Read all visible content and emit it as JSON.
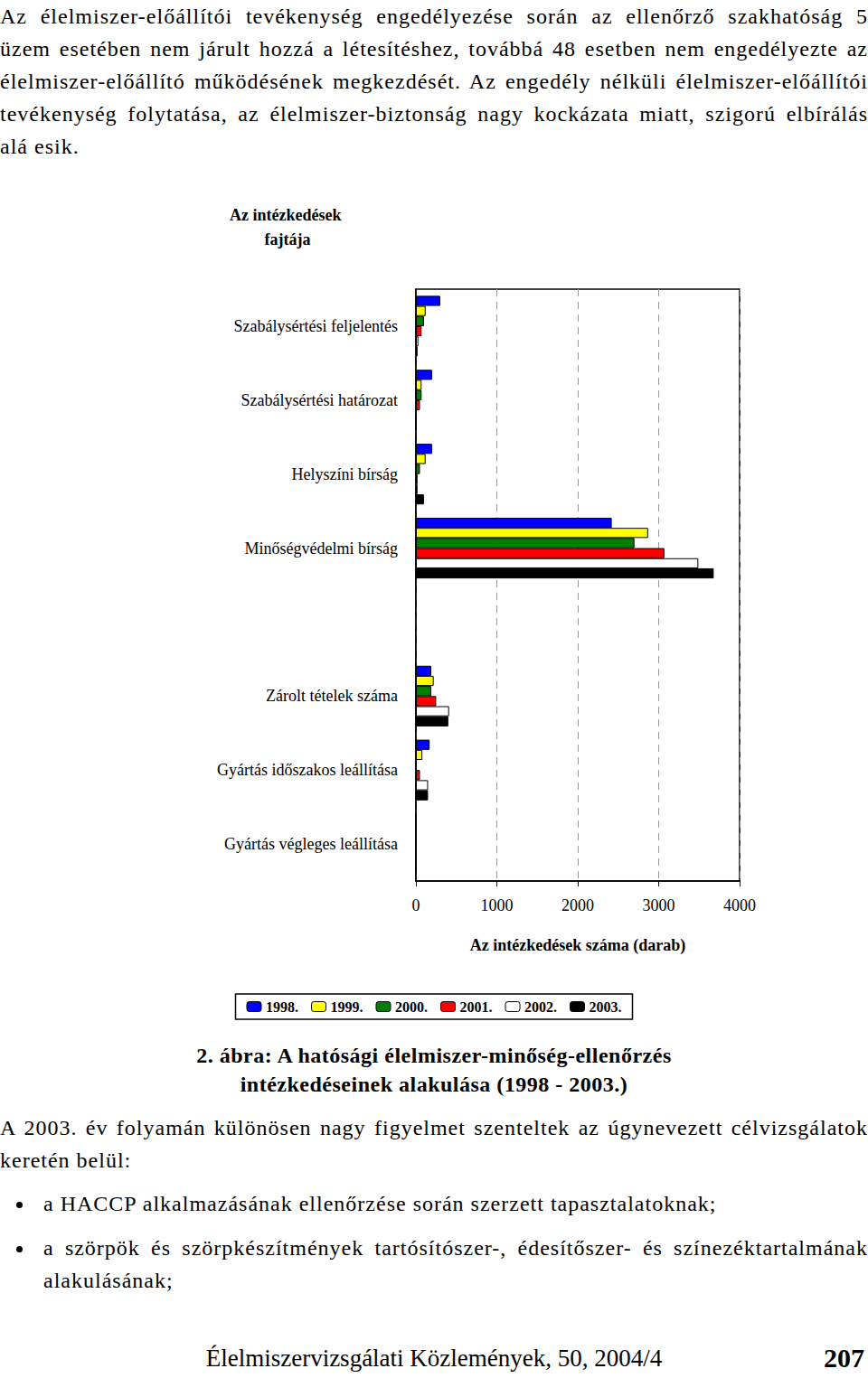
{
  "paragraphs": [
    "Az élelmiszer-előállítói tevékenység engedélyezése során az ellenőrző szakhatóság 5 üzem esetében nem járult hozzá a létesítéshez, továbbá 48 esetben nem engedélyezte az élelmiszer-előállító működésének megkezdését. Az engedély nélküli élelmiszer-előállítói tevékenység folytatása, az élelmiszer-biztonság nagy kockázata miatt, szigorú elbírálás alá esik."
  ],
  "chart_data": {
    "type": "bar",
    "orientation": "horizontal",
    "title": "Az intézkedések fajtája",
    "x_label": "Az intézkedések száma (darab)",
    "categories": [
      "Szabálysértési feljelentés",
      "Szabálysértési határozat",
      "Helyszíni bírság",
      "Minőségvédelmi bírság",
      null,
      "Zárolt tételek száma",
      "Gyártás időszakos leállítása",
      "Gyártás végleges leállítása"
    ],
    "series": [
      {
        "name": "1998.",
        "color": "#0000ff",
        "values": [
          300,
          200,
          200,
          2420,
          null,
          190,
          170,
          0
        ]
      },
      {
        "name": "1999.",
        "color": "#ffff00",
        "values": [
          120,
          70,
          120,
          2870,
          null,
          220,
          80,
          0
        ]
      },
      {
        "name": "2000.",
        "color": "#008000",
        "values": [
          100,
          70,
          50,
          2700,
          null,
          190,
          5,
          0
        ]
      },
      {
        "name": "2001.",
        "color": "#ff0000",
        "values": [
          70,
          50,
          20,
          3070,
          null,
          250,
          50,
          0
        ]
      },
      {
        "name": "2002.",
        "color": "#ffffff",
        "values": [
          30,
          10,
          20,
          3490,
          null,
          410,
          150,
          0
        ]
      },
      {
        "name": "2003.",
        "color": "#000000",
        "values": [
          20,
          5,
          100,
          3680,
          null,
          400,
          150,
          0
        ]
      }
    ],
    "xlim": [
      0,
      4000
    ],
    "xticks": [
      0,
      1000,
      2000,
      3000,
      4000
    ],
    "grid": true,
    "legend": "bottom"
  },
  "caption": "2. ábra: A hatósági élelmiszer-minőség-ellenőrzés intézkedéseinek alakulása (1998 - 2003.)",
  "body": "A 2003. év folyamán különösen nagy figyelmet szenteltek az úgynevezett célvizsgálatok keretén belül:",
  "bullets": [
    "a HACCP alkalmazásának ellenőrzése során szerzett tapasztalatoknak;",
    "a szörpök és szörpkészítmények tartósítószer-, édesítőszer- és színezéktartalmának alakulásának;"
  ],
  "footer": {
    "journal": "Élelmiszervizsgálati Közlemények, 50, 2004/4",
    "page": "207"
  }
}
